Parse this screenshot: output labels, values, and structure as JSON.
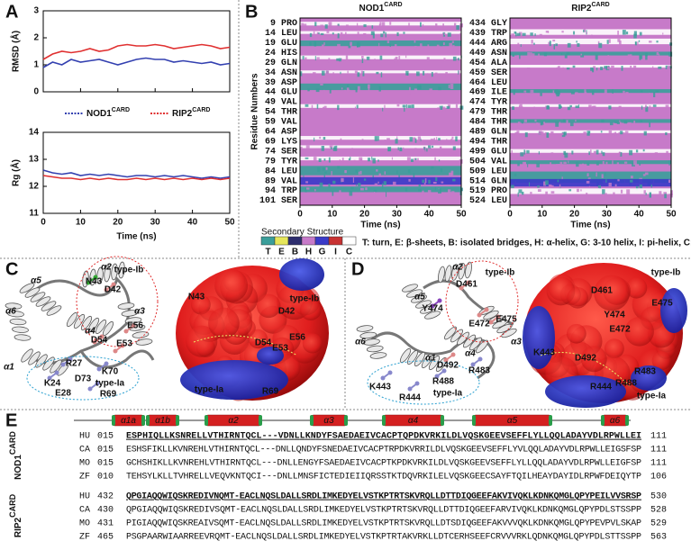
{
  "panel_labels": [
    "A",
    "B",
    "C",
    "D",
    "E"
  ],
  "chart_data": [
    {
      "type": "line",
      "ylabel": "RMSD (Å)",
      "xlim": [
        0,
        50
      ],
      "xticks": [
        0,
        10,
        20,
        30,
        40,
        50
      ],
      "ylim": [
        0,
        3
      ],
      "yticks": [
        0,
        1,
        2,
        3
      ],
      "x": [
        0,
        2.5,
        5,
        7.5,
        10,
        12.5,
        15,
        17.5,
        20,
        22.5,
        25,
        27.5,
        30,
        32.5,
        35,
        37.5,
        40,
        42.5,
        45,
        47.5,
        50
      ],
      "series": [
        {
          "name": "NOD1",
          "name_sup": "CARD",
          "color": "#3340b0",
          "values": [
            0.9,
            1.1,
            1.0,
            1.2,
            1.1,
            1.15,
            1.2,
            1.1,
            1.0,
            1.1,
            1.2,
            1.25,
            1.2,
            1.2,
            1.1,
            1.15,
            1.1,
            1.05,
            1.1,
            1.0,
            1.05
          ]
        },
        {
          "name": "RIP2",
          "name_sup": "CARD",
          "color": "#e03030",
          "values": [
            1.2,
            1.4,
            1.5,
            1.45,
            1.5,
            1.6,
            1.5,
            1.55,
            1.7,
            1.75,
            1.7,
            1.7,
            1.75,
            1.7,
            1.6,
            1.65,
            1.7,
            1.75,
            1.7,
            1.6,
            1.65
          ]
        }
      ]
    },
    {
      "type": "line",
      "xlabel": "Time (ns)",
      "ylabel": "Rg (Å)",
      "xlim": [
        0,
        50
      ],
      "xticks": [
        0,
        10,
        20,
        30,
        40,
        50
      ],
      "ylim": [
        11,
        14
      ],
      "yticks": [
        11,
        12,
        13,
        14
      ],
      "x": [
        0,
        2.5,
        5,
        7.5,
        10,
        12.5,
        15,
        17.5,
        20,
        22.5,
        25,
        27.5,
        30,
        32.5,
        35,
        37.5,
        40,
        42.5,
        45,
        47.5,
        50
      ],
      "series": [
        {
          "color": "#3340b0",
          "values": [
            12.6,
            12.5,
            12.45,
            12.5,
            12.4,
            12.45,
            12.4,
            12.45,
            12.4,
            12.35,
            12.4,
            12.4,
            12.35,
            12.4,
            12.35,
            12.4,
            12.35,
            12.3,
            12.35,
            12.3,
            12.35
          ]
        },
        {
          "color": "#e03030",
          "values": [
            12.4,
            12.35,
            12.3,
            12.3,
            12.25,
            12.3,
            12.25,
            12.3,
            12.25,
            12.25,
            12.3,
            12.25,
            12.3,
            12.25,
            12.3,
            12.25,
            12.3,
            12.25,
            12.3,
            12.25,
            12.3
          ]
        }
      ]
    }
  ],
  "secondary_structure": {
    "ylabel": "Residue Numbers",
    "xlabel": "Time (ns)",
    "xlim": [
      0,
      50
    ],
    "xticks": [
      0,
      10,
      20,
      30,
      40,
      50
    ],
    "panels": [
      {
        "title": "NOD1",
        "title_sup": "CARD",
        "residues": [
          "9 PRO",
          "14 LEU",
          "19 GLU",
          "24 HIS",
          "29 GLN",
          "34 ASN",
          "39 ASP",
          "44 GLU",
          "49 VAL",
          "54 THR",
          "59 VAL",
          "64 ASP",
          "69 LYS",
          "74 SER",
          "79 TYR",
          "84 LEU",
          "89 VAL",
          "94 TRP",
          "101 SER"
        ]
      },
      {
        "title": "RIP2",
        "title_sup": "CARD",
        "residues": [
          "434 GLY",
          "439 TRP",
          "444 ARG",
          "449 ASN",
          "454 ALA",
          "459 SER",
          "464 LEU",
          "469 ILE",
          "474 TYR",
          "479 THR",
          "484 THR",
          "489 GLN",
          "494 THR",
          "499 GLU",
          "504 VAL",
          "509 LEU",
          "514 GLN",
          "519 PRO",
          "524 LEU"
        ]
      }
    ],
    "legend_title": "Secondary Structure",
    "codes": [
      {
        "code": "T",
        "color": "#3a9e9a"
      },
      {
        "code": "E",
        "color": "#e6e65a"
      },
      {
        "code": "B",
        "color": "#2d2d6e"
      },
      {
        "code": "H",
        "color": "#c77ac9"
      },
      {
        "code": "G",
        "color": "#3a3ac8"
      },
      {
        "code": "I",
        "color": "#c83232"
      },
      {
        "code": "C",
        "color": "#ffffff"
      }
    ],
    "caption": "T: turn, E: β-sheets, B: isolated bridges, H: α-helix, G: 3-10 helix, I: pi-helix, C: coil"
  },
  "structures": [
    {
      "cartoon_labels": [
        "α2",
        "type-Ib",
        "N43",
        "D42",
        "α5",
        "α6",
        "α3",
        "E56",
        "α4",
        "D54",
        "E53",
        "α1",
        "R27",
        "K24",
        "D73",
        "K70",
        "E28",
        "R69",
        "type-Ia"
      ],
      "surface_labels": [
        "N43",
        "type-Ib",
        "D42",
        "E56",
        "D54",
        "E53",
        "R69",
        "type-Ia"
      ]
    },
    {
      "cartoon_labels": [
        "α2",
        "type-Ib",
        "D461",
        "α5",
        "Y474",
        "E475",
        "E472",
        "α3",
        "α6",
        "α4",
        "D492",
        "α1",
        "R483",
        "K443",
        "R444",
        "R488",
        "type-Ia"
      ],
      "surface_labels": [
        "type-Ib",
        "D461",
        "E475",
        "Y474",
        "E472",
        "K443",
        "D492",
        "R483",
        "R444",
        "R488",
        "type-Ia"
      ]
    }
  ],
  "alignment": {
    "helices": [
      "α1a",
      "α1b",
      "α2",
      "α3",
      "α4",
      "α5",
      "α6"
    ],
    "groups": [
      {
        "label": "NOD1",
        "label_sup": "CARD",
        "rows": [
          {
            "species": "HU",
            "start": "015",
            "seq": "ESPHIQLLKSNRELLVTHIRNTQCL---VDNLLKNDYFSAEDAEIVCACPTQPDKVRKILDLVQSKGEEVSEFFLYLLQQLADAYVDLRPWLLEI",
            "end": "111"
          },
          {
            "species": "CA",
            "start": "015",
            "seq": "ESHSFIKLLKVNREHLVTHIRNTQCL---DNLLQNDYFSNEDAEIVCACPTRPDKVRRILDLVQSKGEEVSEFFLYVLQQLADAYVDLRPWLLEIGSFSP",
            "end": "111"
          },
          {
            "species": "MO",
            "start": "015",
            "seq": "GCHSHIKLLKVNREHLVTHIRNTQCL---DNLLENGYFSAEDAEIVCACPTKPDKVRKILDLVQSKGEEVSEFFLYLLQQLADAYVDLRPWLLEIGFSP",
            "end": "111"
          },
          {
            "species": "ZF",
            "start": "010",
            "seq": "TEHSYLKLLTVHRELLVEQVKNTQCI---DNLLMNSFICTEDIEIIQRSSTKTDQVRKILELVQSKGEECSAYFTQILHEAYDAYIDLRPWFDEIQYTP",
            "end": "106"
          }
        ]
      },
      {
        "label": "RIP2",
        "label_sup": "CARD",
        "rows": [
          {
            "species": "HU",
            "start": "432",
            "seq": "QPGIAQQWIQSKREDIVNQMT-EACLNQSLDALLSRDLIMKEDYELVSTKPTRTSKVRQLLDTTDIQGEEFAKVIVQKLKDNKQMGLQPYPEILVVSRSP",
            "end": "530"
          },
          {
            "species": "CA",
            "start": "430",
            "seq": "QPGIAQQWIQSKREDIVSQMT-EACLNQSLDALLSRDLIMKEDYELVSTKPTRTSKVRQLLDTTDIQGEEFARVIVQKLKDNKQMGLQPYPDLSTSSPP",
            "end": "528"
          },
          {
            "species": "MO",
            "start": "431",
            "seq": "PIGIAQQWIQSKREAIVSQMT-EACLNQSLDALLSRDLIMKEDYELVSTKPTRTSKVRQLLDTSDIQGEEFAKVVVQKLKDNKQMGLQPYPEVPVLSKAP",
            "end": "529"
          },
          {
            "species": "ZF",
            "start": "465",
            "seq": "PSGPAARWIAARREEVRQMT-EACLNQSLDALLSRDLIMKEDYELVSTKPTRTAKVRKLLDTCERHSEEFCRVVVRKLQDNKQMGLQPYPDLSTTSSPP",
            "end": "563"
          }
        ]
      }
    ]
  }
}
